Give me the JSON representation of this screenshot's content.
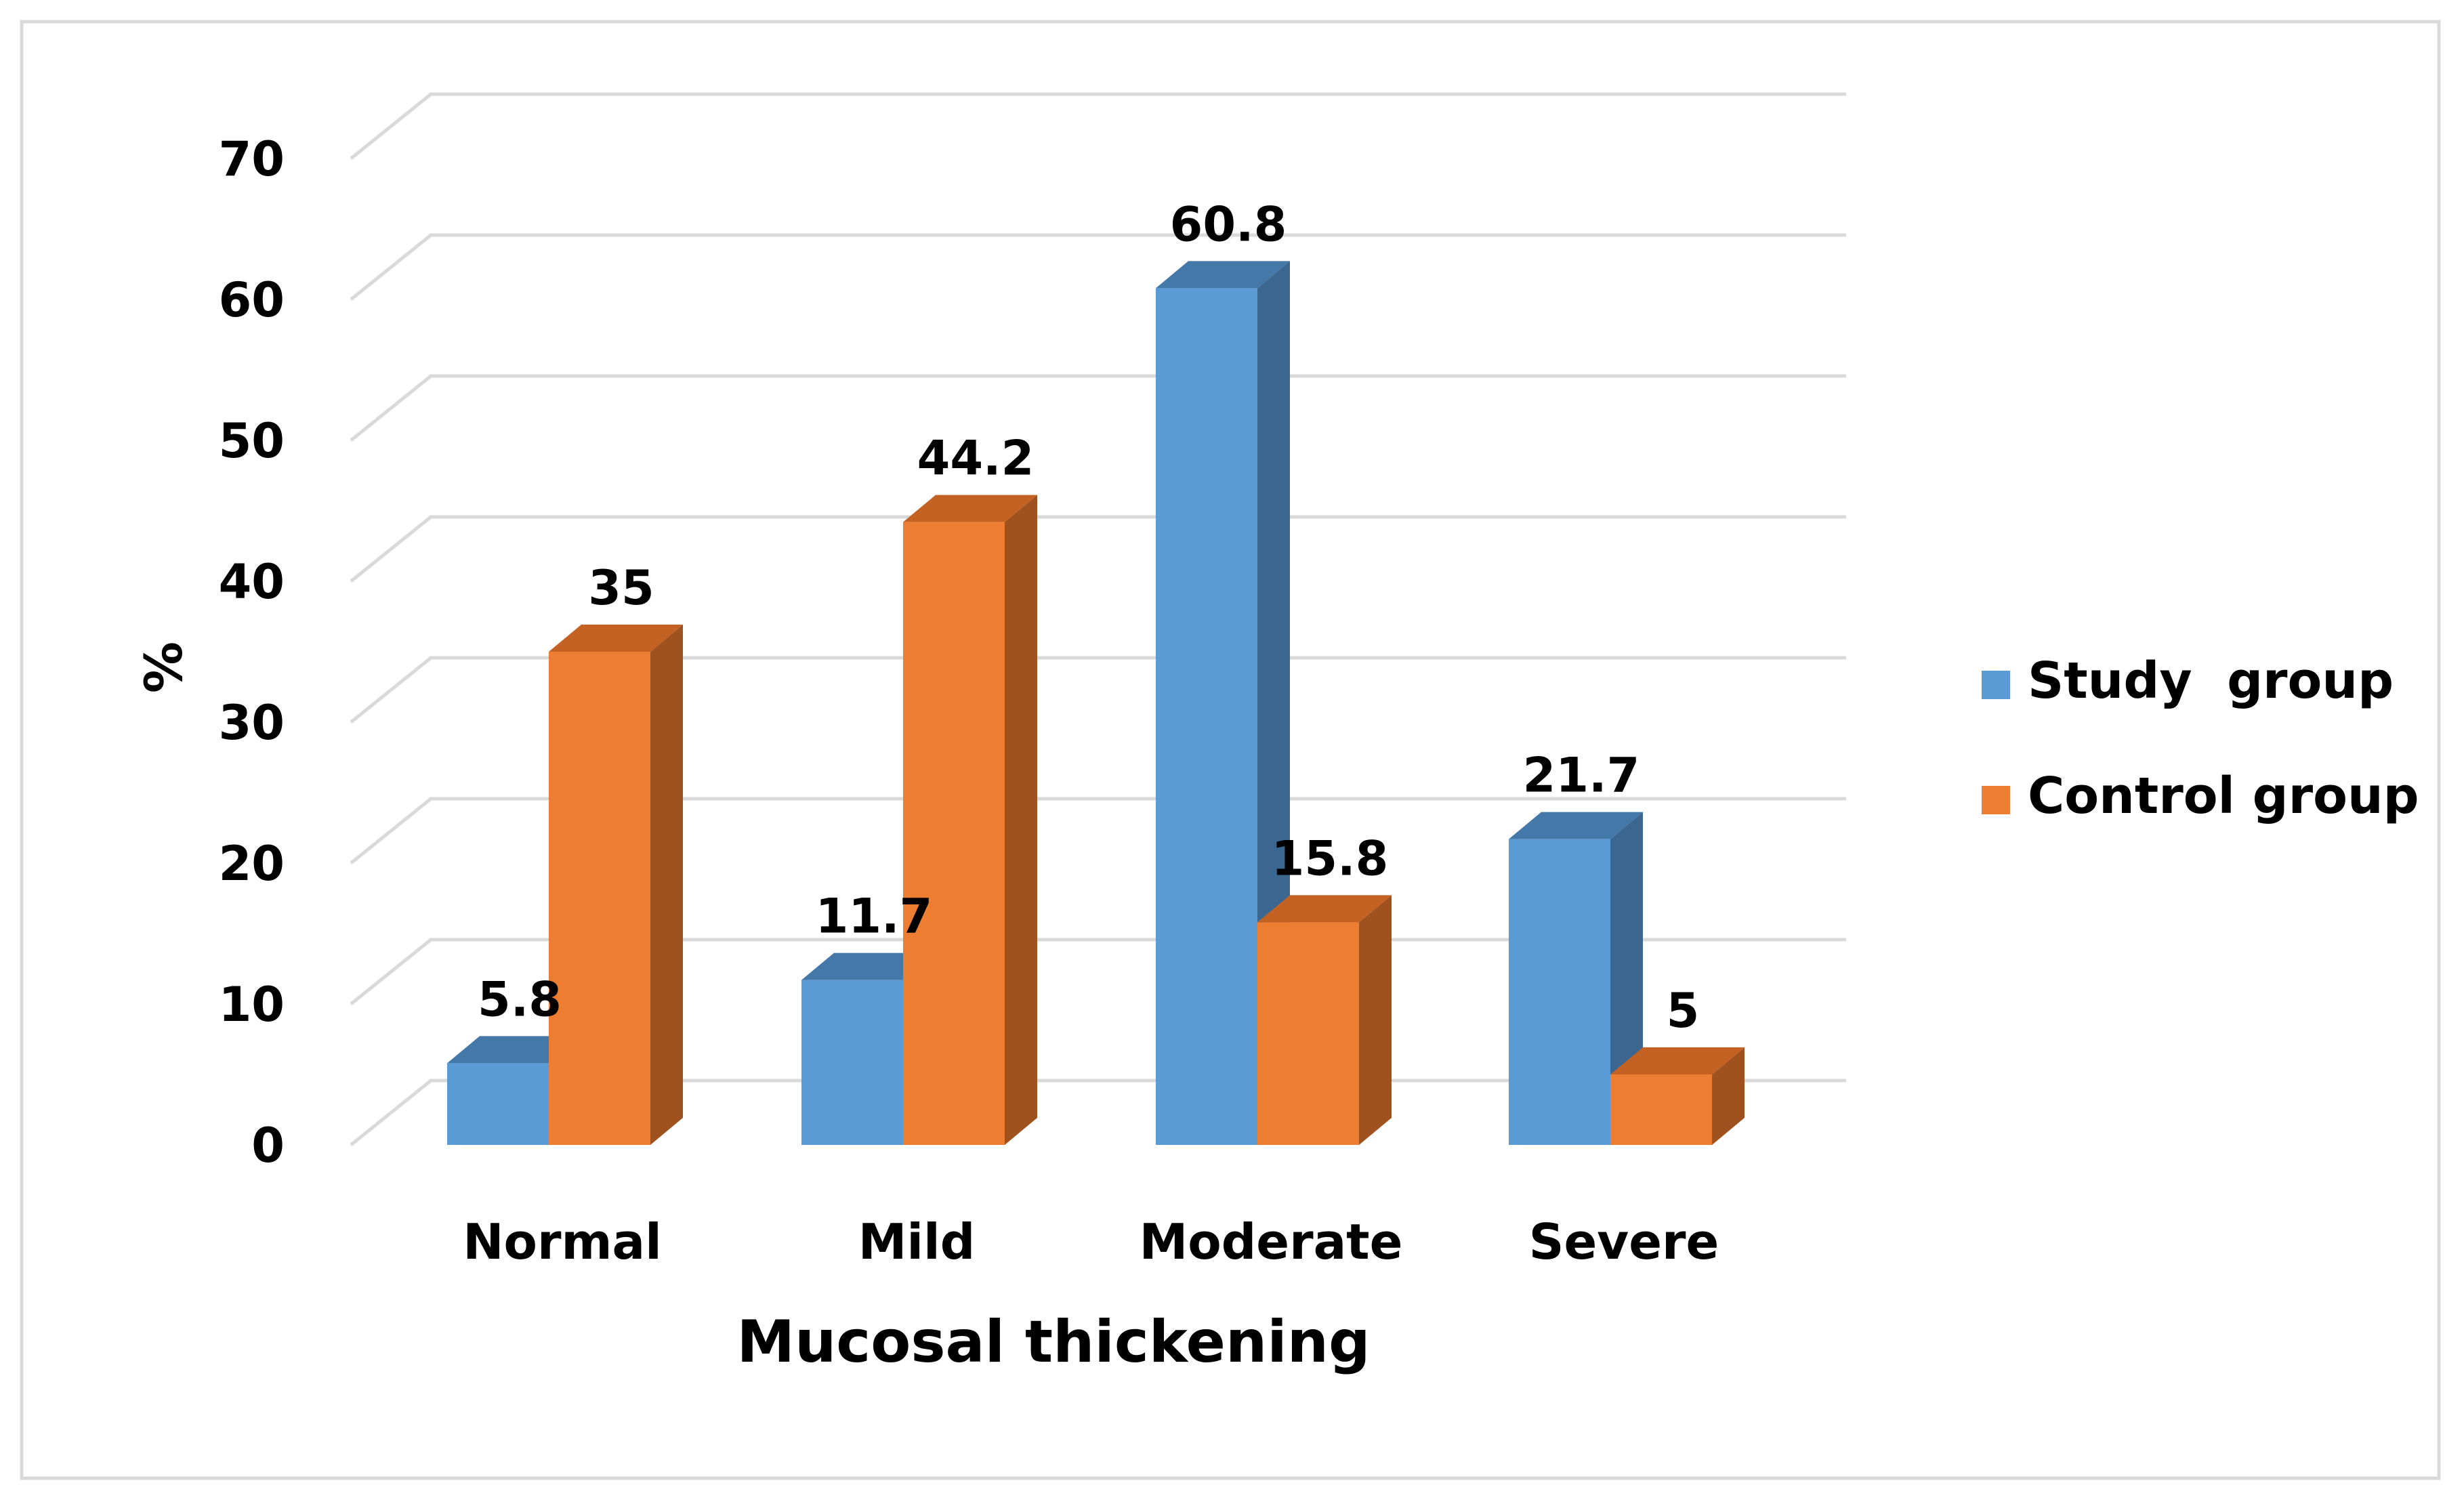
{
  "chart_data": {
    "type": "bar",
    "title": "",
    "xlabel": "Mucosal thickening",
    "ylabel": "%",
    "ylim": [
      0,
      70
    ],
    "yticks": [
      0,
      10,
      20,
      30,
      40,
      50,
      60,
      70
    ],
    "grid": true,
    "legend_position": "right",
    "categories": [
      "Normal",
      "Mild",
      "Moderate",
      "Severe"
    ],
    "series": [
      {
        "name": "Study  group",
        "values": [
          5.8,
          11.7,
          60.8,
          21.7
        ],
        "color": "#5B9BD5",
        "side_color": "#3A668F",
        "top_color": "#4478A8"
      },
      {
        "name": "Control group",
        "values": [
          35,
          44.2,
          15.8,
          5
        ],
        "color": "#ED7D31",
        "side_color": "#A0521E",
        "top_color": "#C46223"
      }
    ],
    "value_labels": [
      [
        "5.8",
        "11.7",
        "60.8",
        "21.7"
      ],
      [
        "35",
        "44.2",
        "15.8",
        "5"
      ]
    ]
  }
}
